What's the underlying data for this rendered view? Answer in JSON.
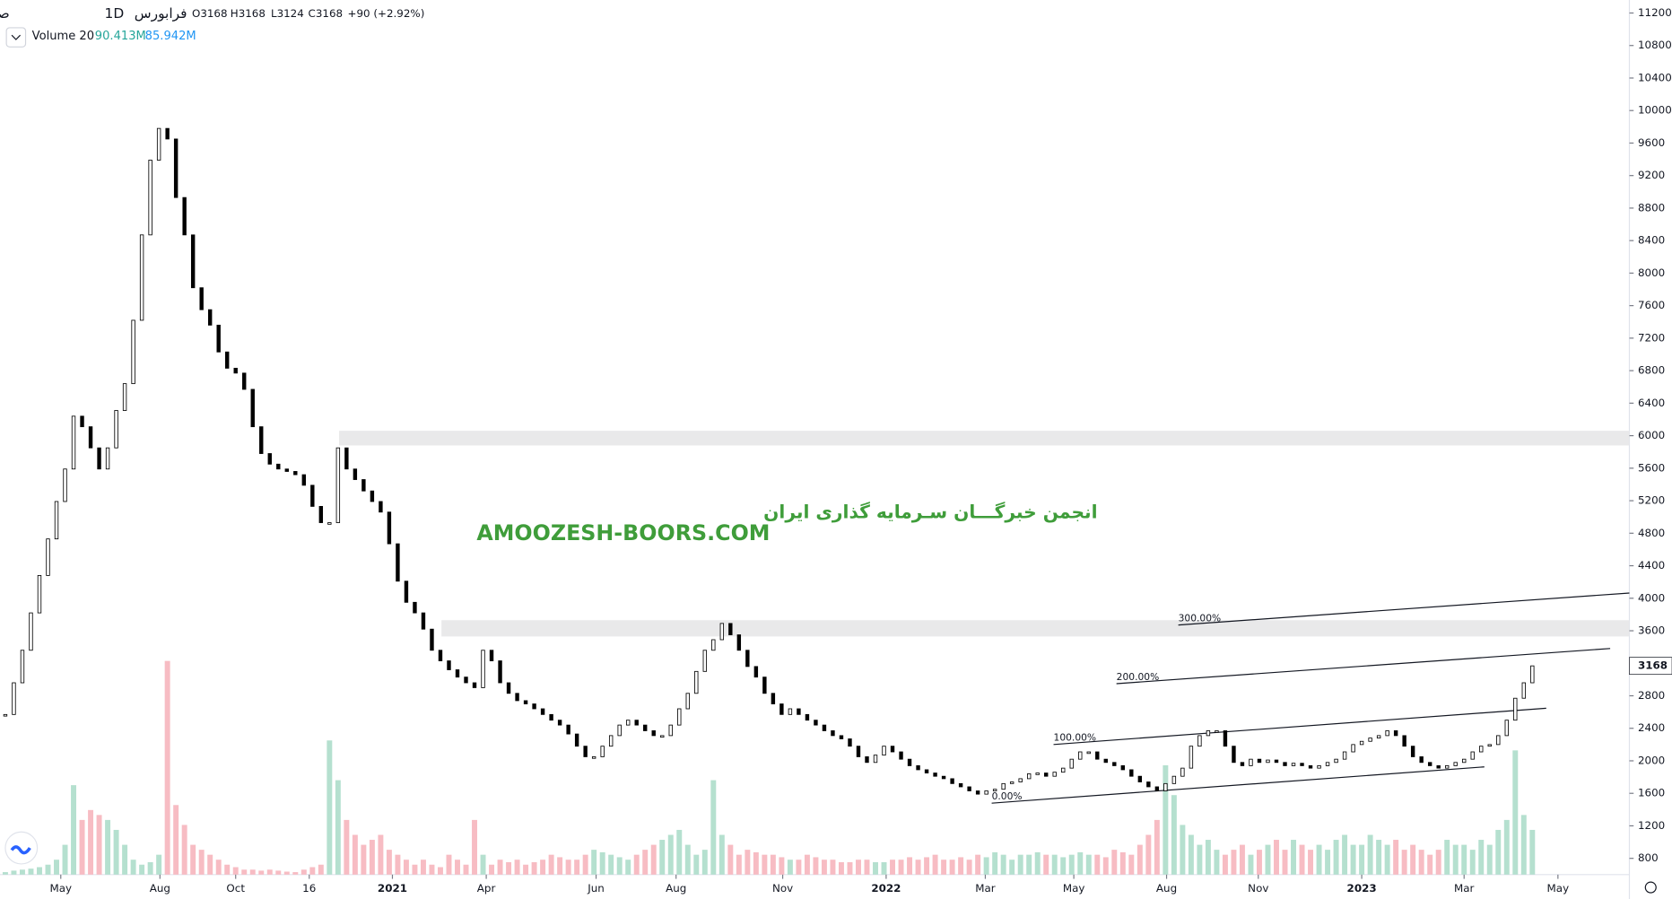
{
  "chart_data": {
    "type": "candlestick",
    "symbol": "صنعتی دریایی",
    "interval": "1D",
    "exchange": "فرابورس",
    "ohlc": [
      "O3168",
      "H3168",
      "L3124",
      "C3168",
      "+90 (+2.92%)"
    ],
    "volume_title": "Volume 20",
    "volume_legend": [
      "90.413M",
      "85.942M"
    ],
    "watermark": [
      "انجمن خبرگـــان سـرمایه گذاری ایران",
      "AMOOZESH-BOORS.COM"
    ],
    "channel_labels": [
      "0.00%",
      "100.00%",
      "200.00%",
      "300.00%"
    ],
    "zones": [
      {
        "from": 5880,
        "to": 6060
      },
      {
        "from": 3530,
        "to": 3730
      }
    ],
    "candle_color": "#000000",
    "up_volume_color": "#b5e0cf",
    "down_volume_color": "#f7bcc3",
    "close": [
      2570,
      2960,
      3360,
      3820,
      4280,
      4730,
      5190,
      5590,
      6240,
      6110,
      5850,
      5590,
      5850,
      6310,
      6640,
      7420,
      8470,
      9390,
      9780,
      9650,
      8930,
      8470,
      7820,
      7550,
      7360,
      7030,
      6830,
      6770,
      6570,
      6110,
      5780,
      5650,
      5590,
      5560,
      5520,
      5390,
      5130,
      4930,
      4930,
      5850,
      5590,
      5460,
      5320,
      5190,
      5060,
      4670,
      4210,
      3950,
      3820,
      3620,
      3360,
      3230,
      3120,
      3030,
      2960,
      2900,
      3360,
      3230,
      2960,
      2830,
      2740,
      2700,
      2640,
      2570,
      2500,
      2440,
      2330,
      2180,
      2050,
      2050,
      2180,
      2310,
      2440,
      2500,
      2440,
      2370,
      2310,
      2310,
      2440,
      2640,
      2830,
      3100,
      3360,
      3490,
      3690,
      3550,
      3360,
      3160,
      3030,
      2830,
      2700,
      2570,
      2640,
      2570,
      2500,
      2440,
      2370,
      2310,
      2270,
      2180,
      2050,
      1980,
      2070,
      2180,
      2110,
      2020,
      1940,
      1890,
      1850,
      1810,
      1780,
      1720,
      1680,
      1630,
      1590,
      1630,
      1650,
      1720,
      1740,
      1780,
      1840,
      1850,
      1810,
      1860,
      1910,
      2020,
      2110,
      2110,
      2020,
      1980,
      1940,
      1890,
      1810,
      1740,
      1680,
      1630,
      1720,
      1810,
      1910,
      2180,
      2310,
      2370,
      2370,
      2180,
      1980,
      1940,
      2020,
      1980,
      2010,
      1980,
      1940,
      1970,
      1940,
      1910,
      1940,
      1980,
      2020,
      2110,
      2200,
      2240,
      2280,
      2310,
      2370,
      2310,
      2180,
      2050,
      1980,
      1940,
      1910,
      1940,
      1980,
      2020,
      2110,
      2180,
      2200,
      2310,
      2500,
      2770,
      2960,
      3168
    ],
    "volume": [
      5,
      8,
      10,
      12,
      15,
      20,
      30,
      60,
      180,
      110,
      130,
      120,
      110,
      90,
      60,
      30,
      20,
      25,
      40,
      430,
      140,
      100,
      60,
      50,
      40,
      30,
      20,
      15,
      10,
      10,
      8,
      10,
      8,
      6,
      5,
      10,
      15,
      20,
      270,
      190,
      110,
      80,
      60,
      70,
      80,
      50,
      40,
      30,
      20,
      30,
      20,
      15,
      40,
      30,
      20,
      110,
      40,
      20,
      30,
      25,
      30,
      20,
      25,
      30,
      40,
      35,
      30,
      30,
      40,
      50,
      45,
      40,
      35,
      30,
      40,
      50,
      60,
      70,
      80,
      90,
      60,
      40,
      50,
      190,
      80,
      60,
      40,
      50,
      45,
      40,
      40,
      35,
      30,
      30,
      40,
      35,
      30,
      30,
      25,
      25,
      30,
      30,
      25,
      25,
      30,
      30,
      35,
      30,
      35,
      40,
      30,
      30,
      35,
      30,
      40,
      35,
      45,
      40,
      30,
      40,
      40,
      45,
      40,
      40,
      35,
      40,
      45,
      40,
      40,
      35,
      50,
      45,
      40,
      60,
      80,
      110,
      220,
      160,
      100,
      80,
      60,
      70,
      50,
      40,
      50,
      60,
      40,
      50,
      60,
      70,
      50,
      70,
      60,
      50,
      60,
      50,
      70,
      80,
      60,
      60,
      80,
      70,
      60,
      70,
      50,
      60,
      50,
      40,
      50,
      70,
      60,
      60,
      50,
      70,
      60,
      90,
      110,
      250,
      120,
      90
    ],
    "volume_ylim": [
      0,
      440
    ],
    "xlim": [
      -0.625,
      190.375
    ],
    "xticks": [
      {
        "value": 6.5,
        "label": "May"
      },
      {
        "value": 18.125,
        "label": "Aug"
      },
      {
        "value": 27,
        "label": "Oct"
      },
      {
        "value": 35.625,
        "label": "16"
      },
      {
        "value": 45.375,
        "label": "2021"
      },
      {
        "value": 56.375,
        "label": "Apr"
      },
      {
        "value": 69.25,
        "label": "Jun"
      },
      {
        "value": 78.625,
        "label": "Aug"
      },
      {
        "value": 91.125,
        "label": "Nov"
      },
      {
        "value": 103.25,
        "label": "2022"
      },
      {
        "value": 114.875,
        "label": "Mar"
      },
      {
        "value": 125.25,
        "label": "May"
      },
      {
        "value": 136.125,
        "label": "Aug"
      },
      {
        "value": 146.875,
        "label": "Nov"
      },
      {
        "value": 159,
        "label": "2023"
      },
      {
        "value": 171,
        "label": "Mar"
      },
      {
        "value": 182,
        "label": "May"
      }
    ],
    "ylim": [
      600,
      11360
    ],
    "yticks": [
      800,
      1200,
      1600,
      2000,
      2400,
      2800,
      3600,
      4000,
      4400,
      4800,
      5200,
      5600,
      6000,
      6400,
      6800,
      7200,
      7600,
      8000,
      8400,
      8800,
      9200,
      9600,
      10000,
      10400,
      10800,
      11200
    ]
  }
}
